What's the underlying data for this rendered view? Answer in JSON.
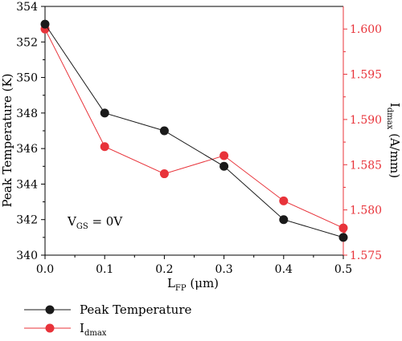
{
  "chart_data": {
    "type": "line",
    "x": [
      0.0,
      0.1,
      0.2,
      0.3,
      0.4,
      0.5
    ],
    "x_ticks": [
      "0.0",
      "0.1",
      "0.2",
      "0.3",
      "0.4",
      "0.5"
    ],
    "xlim": [
      0.0,
      0.5
    ],
    "xlabel": {
      "main": "L",
      "sub": "FP",
      "unit": " (μm)"
    },
    "y_left": {
      "label": "Peak Temperature (K)",
      "lim": [
        340,
        354
      ],
      "ticks": [
        "340",
        "342",
        "344",
        "346",
        "348",
        "350",
        "352",
        "354"
      ],
      "color": "#000000"
    },
    "y_right": {
      "label_main": "I",
      "label_sub": "dmax",
      "label_unit": " (A/mm)",
      "lim": [
        1.575,
        1.6025
      ],
      "ticks": [
        "1.575",
        "1.580",
        "1.585",
        "1.590",
        "1.595",
        "1.600"
      ],
      "color": "#e8333a"
    },
    "series": [
      {
        "name": "Peak Temperature",
        "axis": "left",
        "color": "#1a1a1a",
        "marker_color": "#1a1a1a",
        "values": [
          353,
          348,
          347,
          345,
          342,
          341
        ]
      },
      {
        "name_main": "I",
        "name_sub": "dmax",
        "axis": "right",
        "color": "#e8333a",
        "marker_color": "#e8333a",
        "values": [
          1.6,
          1.587,
          1.584,
          1.586,
          1.581,
          1.578
        ]
      }
    ],
    "annotation": {
      "main": "V",
      "sub": "GS",
      "rest": " = 0V"
    },
    "grid": false,
    "legend_position": "bottom-left"
  }
}
